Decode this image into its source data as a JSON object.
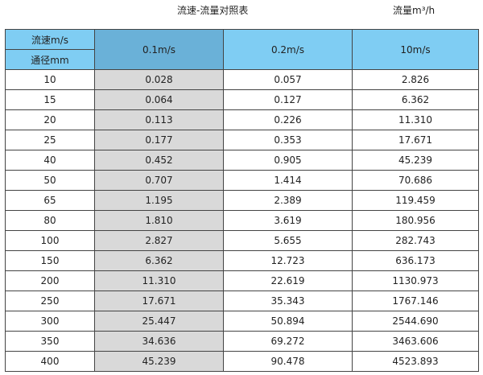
{
  "title": "流速-流量对照表",
  "unit": "流量m³/h",
  "header": {
    "velocity_label": "流速m/s",
    "diameter_label": "通径mm",
    "columns": [
      "0.1m/s",
      "0.2m/s",
      "10m/s"
    ]
  },
  "colors": {
    "header": "#7fcdf3",
    "header_selected": "#6ab1d8",
    "highlight_column": "#d9d9d9"
  },
  "rows": [
    [
      "10",
      "0.028",
      "0.057",
      "2.826"
    ],
    [
      "15",
      "0.064",
      "0.127",
      "6.362"
    ],
    [
      "20",
      "0.113",
      "0.226",
      "11.310"
    ],
    [
      "25",
      "0.177",
      "0.353",
      "17.671"
    ],
    [
      "40",
      "0.452",
      "0.905",
      "45.239"
    ],
    [
      "50",
      "0.707",
      "1.414",
      "70.686"
    ],
    [
      "65",
      "1.195",
      "2.389",
      "119.459"
    ],
    [
      "80",
      "1.810",
      "3.619",
      "180.956"
    ],
    [
      "100",
      "2.827",
      "5.655",
      "282.743"
    ],
    [
      "150",
      "6.362",
      "12.723",
      "636.173"
    ],
    [
      "200",
      "11.310",
      "22.619",
      "1130.973"
    ],
    [
      "250",
      "17.671",
      "35.343",
      "1767.146"
    ],
    [
      "300",
      "25.447",
      "50.894",
      "2544.690"
    ],
    [
      "350",
      "34.636",
      "69.272",
      "3463.606"
    ],
    [
      "400",
      "45.239",
      "90.478",
      "4523.893"
    ]
  ]
}
